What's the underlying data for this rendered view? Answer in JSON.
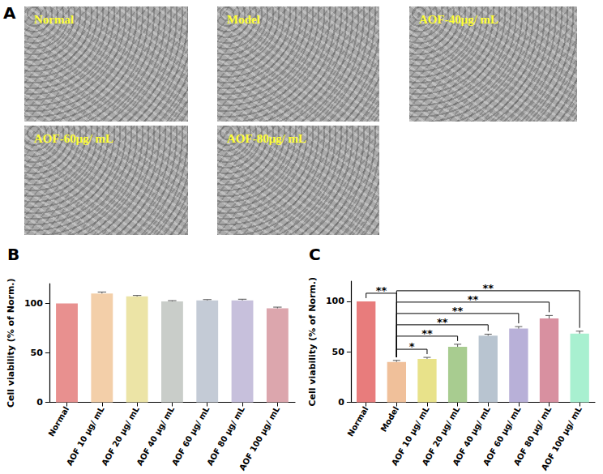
{
  "panel_a": {
    "title": "A",
    "images": [
      {
        "label": "Normal"
      },
      {
        "label": "Model"
      },
      {
        "label": "AOF-40μg/ mL"
      },
      {
        "label": "AOF-60μg/ mL"
      },
      {
        "label": "AOF-80μg/ mL"
      }
    ]
  },
  "chart_data": [
    {
      "type": "bar",
      "title": "B",
      "categories": [
        "Normal",
        "AOF 10 μg/ mL",
        "AOF 20 μg/ mL",
        "AOF 40 μg/ mL",
        "AOF 60 μg/ mL",
        "AOF 80 μg/ mL",
        "AOF 100 μg/ mL"
      ],
      "values": [
        100,
        110,
        107,
        102,
        103,
        103,
        95
      ],
      "errors": [
        0,
        1.5,
        1,
        0.8,
        0.8,
        1.2,
        1.2
      ],
      "colors": [
        "#e8908f",
        "#f3cfa9",
        "#ece4a6",
        "#c9cdc9",
        "#c4cbd6",
        "#c7c0dc",
        "#dca6ad"
      ],
      "ylabel": "Cell viability (% of Norm.)",
      "ylim": [
        0,
        120
      ],
      "yticks": [
        0,
        50,
        100
      ],
      "grid": false
    },
    {
      "type": "bar",
      "title": "C",
      "categories": [
        "Normal",
        "Model",
        "AOF 10 μg/ mL",
        "AOF 20 μg/ mL",
        "AOF 40 μg/ mL",
        "AOF 60 μg/ mL",
        "AOF 80 μg/ mL",
        "AOF 100 μg/ mL"
      ],
      "values": [
        100,
        40,
        43,
        55,
        66,
        73,
        83,
        68
      ],
      "errors": [
        0,
        1.5,
        1.5,
        2.5,
        1.5,
        2,
        3,
        2.5
      ],
      "colors": [
        "#e87c7c",
        "#f0c09a",
        "#e8e28a",
        "#a8cc90",
        "#b8c4d0",
        "#b8b0d8",
        "#d890a0",
        "#a8f0d0"
      ],
      "ylabel": "Cell viability (% of Norm.)",
      "ylim": [
        0,
        120
      ],
      "yticks": [
        0,
        50,
        100
      ],
      "grid": false,
      "annotations": [
        {
          "from": "Normal",
          "to": "Model",
          "text": "**"
        },
        {
          "from": "Model",
          "to": "AOF 10 μg/ mL",
          "text": "*"
        },
        {
          "from": "Model",
          "to": "AOF 20 μg/ mL",
          "text": "**"
        },
        {
          "from": "Model",
          "to": "AOF 40 μg/ mL",
          "text": "**"
        },
        {
          "from": "Model",
          "to": "AOF 60 μg/ mL",
          "text": "**"
        },
        {
          "from": "Model",
          "to": "AOF 80 μg/ mL",
          "text": "**"
        },
        {
          "from": "Model",
          "to": "AOF 100 μg/ mL",
          "text": "**"
        }
      ]
    }
  ]
}
